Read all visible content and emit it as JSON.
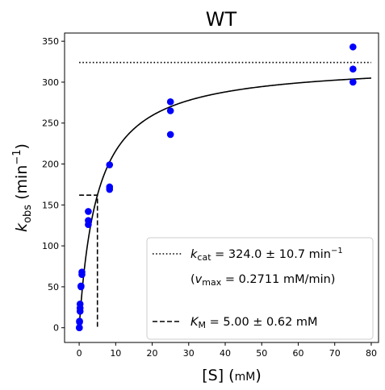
{
  "chart_data": {
    "type": "scatter",
    "title": "WT",
    "xlabel": {
      "main": "[S] (",
      "unit": "mM",
      "close": ")"
    },
    "ylabel": {
      "k": "k",
      "sub": "obs",
      "rest": " (min",
      "sup": "−1",
      "close": ")"
    },
    "xlim": [
      -4,
      82
    ],
    "ylim": [
      -18,
      360
    ],
    "xticks": [
      0,
      10,
      20,
      30,
      40,
      50,
      60,
      70,
      80
    ],
    "yticks": [
      0,
      50,
      100,
      150,
      200,
      250,
      300,
      350
    ],
    "grid": false,
    "legend_position": "lower-right",
    "points": {
      "color": "#0000ff",
      "x": [
        0.05,
        0.05,
        0.1,
        0.1,
        0.25,
        0.25,
        0.25,
        0.5,
        0.5,
        0.75,
        0.75,
        2.5,
        2.5,
        2.5,
        8.33,
        8.33,
        8.33,
        25,
        25,
        25,
        75,
        75,
        75
      ],
      "y": [
        0,
        0,
        7,
        8,
        20,
        24,
        29,
        50,
        51,
        65,
        68,
        126,
        131,
        142,
        169,
        172,
        199,
        236,
        265,
        276,
        300,
        316,
        343
      ]
    },
    "fit": {
      "kcat": 324.0,
      "km": 5.0,
      "x_range": [
        0,
        80
      ],
      "color": "#000000"
    },
    "kcat_line": {
      "y": 324.0,
      "x_range": [
        0,
        80
      ],
      "style": "dotted"
    },
    "km_line": {
      "x": 5.0,
      "y_half": 162.0,
      "x_start": 0,
      "style": "dashed"
    },
    "legend": [
      {
        "id": "kcat",
        "style": "dotted",
        "sym": "k",
        "sub": "cat",
        "text": " = 324.0 ± 10.7 min",
        "sup": "−1"
      },
      {
        "id": "vmax",
        "style": "none",
        "open": "(",
        "sym": "v",
        "sub": "max",
        "text": " = 0.2711 mM/min)"
      },
      {
        "id": "km",
        "style": "dashed",
        "sym": "K",
        "sub": "M",
        "text": " = 5.00 ± 0.62 mM"
      }
    ]
  }
}
